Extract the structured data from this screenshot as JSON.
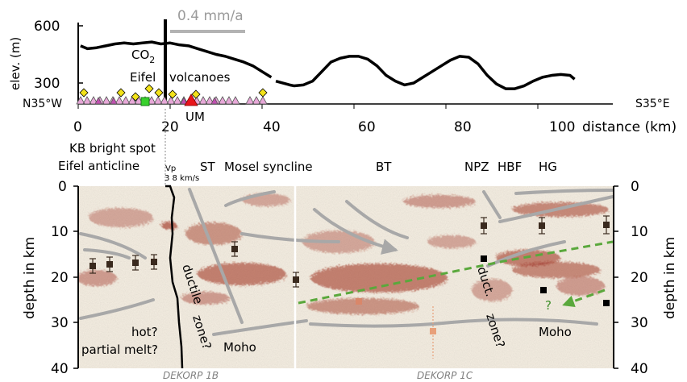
{
  "top_panel": {
    "y_axis_label": "elev. (m)",
    "y_ticks": [
      "600",
      "300"
    ],
    "x_ticks": [
      "0",
      "20",
      "40",
      "60",
      "80",
      "100"
    ],
    "x_axis_label": "distance (km)",
    "left_direction": "N35°W",
    "right_direction": "S35°E",
    "rate_label": "0.4 mm/a",
    "co2_label": "CO",
    "co2_subscript": "2",
    "volcano_label_1": "Eifel",
    "volcano_label_2": "volcanoes",
    "um_label": "UM",
    "elevation_profile_km_m": [
      [
        0.5,
        495
      ],
      [
        2,
        480
      ],
      [
        4,
        485
      ],
      [
        6,
        495
      ],
      [
        8,
        505
      ],
      [
        10,
        510
      ],
      [
        12,
        505
      ],
      [
        14,
        510
      ],
      [
        16,
        515
      ],
      [
        18,
        505
      ],
      [
        20,
        510
      ],
      [
        22,
        500
      ],
      [
        24,
        495
      ],
      [
        26,
        480
      ],
      [
        28,
        465
      ],
      [
        30,
        450
      ],
      [
        32,
        440
      ],
      [
        34,
        425
      ],
      [
        36,
        410
      ],
      [
        38,
        390
      ],
      [
        40,
        360
      ],
      [
        42,
        330
      ],
      [
        43,
        310
      ],
      [
        46,
        290
      ],
      [
        47,
        285
      ],
      [
        49,
        290
      ],
      [
        51,
        310
      ],
      [
        53,
        360
      ],
      [
        55,
        410
      ],
      [
        57,
        430
      ],
      [
        59,
        440
      ],
      [
        61,
        440
      ],
      [
        63,
        425
      ],
      [
        65,
        390
      ],
      [
        67,
        340
      ],
      [
        69,
        310
      ],
      [
        71,
        290
      ],
      [
        73,
        300
      ],
      [
        75,
        330
      ],
      [
        77,
        360
      ],
      [
        79,
        390
      ],
      [
        81,
        420
      ],
      [
        83,
        440
      ],
      [
        85,
        435
      ],
      [
        87,
        400
      ],
      [
        89,
        340
      ],
      [
        91,
        295
      ],
      [
        93,
        270
      ],
      [
        95,
        270
      ],
      [
        97,
        285
      ],
      [
        99,
        310
      ],
      [
        101,
        330
      ],
      [
        103,
        340
      ],
      [
        105,
        345
      ],
      [
        107,
        340
      ],
      [
        108,
        320
      ]
    ]
  },
  "section": {
    "depth_label_left": "depth in km",
    "depth_label_right": "depth in km",
    "depth_ticks": [
      "0",
      "10",
      "20",
      "30",
      "40"
    ],
    "annotations": {
      "kb_bright_spot": "KB bright spot",
      "eifel_anticline": "Eifel anticline",
      "vp_label": "Vp",
      "vp_scale": "3   8 km/s",
      "st": "ST",
      "mosel_syncline": "Mosel syncline",
      "bt": "BT",
      "npz": "NPZ",
      "hbf": "HBF",
      "hg": "HG",
      "hot": "hot?",
      "partial_melt": "partial melt?",
      "ductile_zone_1": "ductile",
      "ductile_zone_2": "zone?",
      "moho_1": "Moho",
      "duct": "duct.",
      "zone": "zone?",
      "moho_2": "Moho",
      "question": "?",
      "profile_1b": "DEKORP 1B",
      "profile_1c": "DEKORP 1C"
    }
  },
  "colors": {
    "reflections": "#9b2a17",
    "background": "#efe8dc",
    "structure_lines": "#a8a8a8",
    "green_arrow": "#5aa83c",
    "volcano_pink": "#e7a8d8",
    "yellow_marker": "#f2e21a",
    "green_marker": "#38d12c",
    "red_marker": "#e8141a"
  }
}
